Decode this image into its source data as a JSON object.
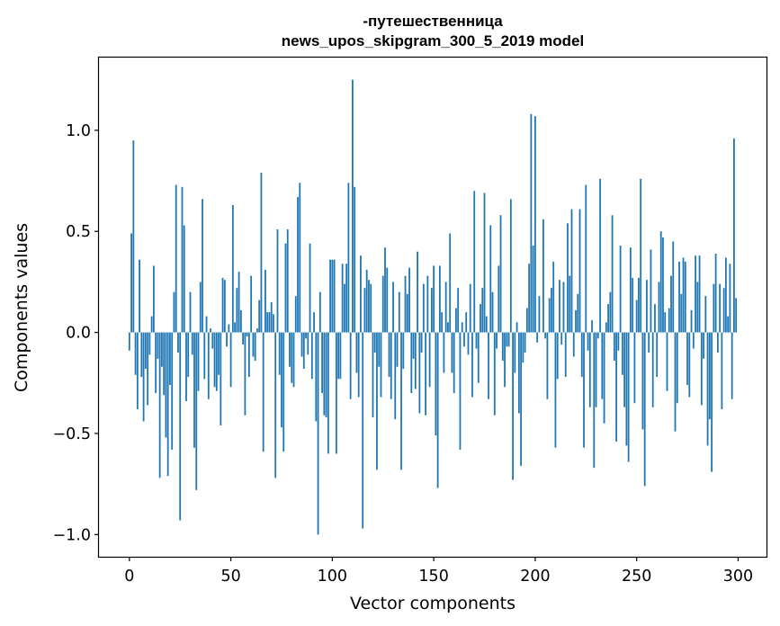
{
  "chart_data": {
    "type": "bar",
    "title_line1": "-путешественница",
    "title_line2": "news_upos_skipgram_300_5_2019 model",
    "xlabel": "Vector components",
    "ylabel": "Components values",
    "xlim": [
      -15,
      314
    ],
    "ylim": [
      -1.11,
      1.36
    ],
    "xticks": [
      0,
      50,
      100,
      150,
      200,
      250,
      300
    ],
    "xtick_labels": [
      "0",
      "50",
      "100",
      "150",
      "200",
      "250",
      "300"
    ],
    "yticks": [
      -1.0,
      -0.5,
      0.0,
      0.5,
      1.0
    ],
    "ytick_labels": [
      "−1.0",
      "−0.5",
      "0.0",
      "0.5",
      "1.0"
    ],
    "grid": false,
    "bar_color": "#1f77b4",
    "x_start": 0,
    "values": [
      -0.09,
      0.49,
      0.95,
      -0.21,
      -0.38,
      0.36,
      -0.22,
      -0.44,
      -0.18,
      -0.36,
      -0.11,
      0.08,
      0.33,
      -0.3,
      -0.13,
      -0.72,
      -0.17,
      -0.31,
      -0.52,
      -0.71,
      -0.26,
      -0.58,
      0.2,
      0.73,
      -0.1,
      -0.93,
      0.72,
      0.53,
      -0.34,
      -0.22,
      0.2,
      -0.11,
      -0.57,
      -0.78,
      -0.29,
      0.25,
      0.66,
      -0.23,
      0.08,
      -0.33,
      0.02,
      -0.08,
      -0.27,
      -0.29,
      -0.21,
      -0.46,
      0.27,
      0.26,
      -0.07,
      0.04,
      -0.27,
      0.63,
      0.05,
      0.22,
      0.3,
      0.11,
      -0.06,
      -0.41,
      -0.02,
      -0.22,
      0.28,
      -0.12,
      -0.14,
      0.02,
      0.16,
      0.79,
      -0.59,
      0.31,
      0.1,
      0.1,
      0.15,
      0.09,
      -0.72,
      0.51,
      -0.21,
      -0.47,
      -0.59,
      0.44,
      0.51,
      -0.17,
      -0.25,
      -0.27,
      0.18,
      0.67,
      0.74,
      -0.12,
      -0.18,
      -0.03,
      -0.11,
      0.44,
      -0.23,
      0.1,
      -0.44,
      -1.0,
      0.2,
      -0.3,
      -0.41,
      -0.42,
      -0.6,
      0.36,
      0.36,
      0.36,
      -0.6,
      -0.23,
      -0.23,
      0.34,
      0.24,
      0.34,
      0.74,
      -0.33,
      1.25,
      0.72,
      -0.2,
      -0.32,
      0.38,
      -0.97,
      0.22,
      0.31,
      0.26,
      0.24,
      -0.42,
      -0.1,
      -0.68,
      -0.17,
      -0.32,
      0.28,
      0.42,
      0.32,
      -0.22,
      -0.33,
      0.25,
      -0.43,
      -0.17,
      0.2,
      -0.68,
      -0.18,
      0.28,
      0.19,
      0.32,
      -0.3,
      -0.13,
      -0.28,
      0.4,
      -0.4,
      -0.1,
      0.24,
      -0.41,
      0.28,
      -0.27,
      0.22,
      0.33,
      -0.51,
      -0.77,
      0.33,
      0.1,
      -0.2,
      0.25,
      0.05,
      0.49,
      -0.2,
      -0.3,
      0.12,
      0.22,
      -0.58,
      0.05,
      -0.07,
      0.1,
      -0.11,
      0.24,
      -0.32,
      0.7,
      -0.08,
      -0.25,
      0.14,
      0.22,
      0.69,
      0.08,
      -0.33,
      0.53,
      0.2,
      -0.41,
      -0.08,
      0.33,
      0.58,
      -0.14,
      -0.27,
      -0.07,
      -0.07,
      0.66,
      -0.73,
      -0.2,
      0.05,
      -0.4,
      -0.66,
      -0.15,
      -0.1,
      0.12,
      0.34,
      1.08,
      0.43,
      1.07,
      -0.05,
      0.18,
      0.0,
      0.56,
      -0.03,
      -0.33,
      0.17,
      0.22,
      0.35,
      -0.57,
      -0.23,
      0.26,
      -0.06,
      0.25,
      -0.22,
      0.54,
      0.28,
      0.61,
      -0.12,
      0.11,
      0.19,
      0.61,
      -0.22,
      -0.57,
      0.73,
      -0.09,
      -0.37,
      0.06,
      -0.67,
      -0.37,
      -0.03,
      0.76,
      -0.33,
      -0.45,
      0.05,
      0.14,
      0.2,
      0.58,
      -0.14,
      -0.54,
      -0.09,
      0.43,
      -0.21,
      -0.37,
      -0.56,
      -0.64,
      0.42,
      0.27,
      -0.35,
      0.16,
      0.27,
      0.76,
      -0.48,
      -0.76,
      0.26,
      -0.1,
      0.41,
      -0.37,
      0.14,
      -0.22,
      0.25,
      0.5,
      0.47,
      0.1,
      -0.29,
      0.12,
      0.28,
      0.45,
      -0.49,
      -0.35,
      0.35,
      0.19,
      0.37,
      0.35,
      -0.26,
      -0.32,
      0.11,
      -0.08,
      0.38,
      0.25,
      0.38,
      -0.36,
      -0.13,
      0.18,
      -0.56,
      -0.43,
      -0.69,
      0.24,
      0.39,
      -0.1,
      0.24,
      -0.38,
      0.22,
      0.37,
      0.08,
      0.34,
      -0.33,
      0.96,
      0.17
    ]
  }
}
